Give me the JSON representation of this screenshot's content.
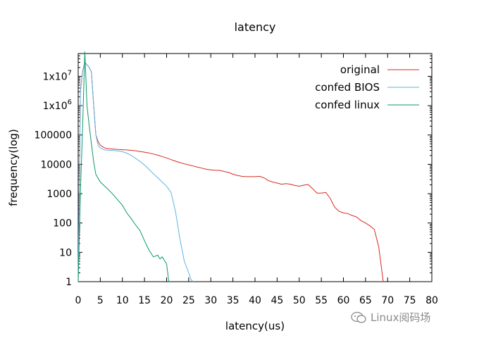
{
  "chart_data": {
    "type": "line",
    "title": "latency",
    "xlabel": "latency(us)",
    "ylabel": "frequency(log)",
    "xlim": [
      0,
      80
    ],
    "ylim": [
      1,
      60000000
    ],
    "y_scale": "log",
    "x_ticks": [
      "0",
      "5",
      "10",
      "15",
      "20",
      "25",
      "30",
      "35",
      "40",
      "45",
      "50",
      "55",
      "60",
      "65",
      "70",
      "75",
      "80"
    ],
    "y_ticks": [
      {
        "value": 1,
        "label": "1"
      },
      {
        "value": 10,
        "label": "10"
      },
      {
        "value": 100,
        "label": "100"
      },
      {
        "value": 1000,
        "label": "1000"
      },
      {
        "value": 10000,
        "label": "10000"
      },
      {
        "value": 100000,
        "label": "100000"
      },
      {
        "value": 1000000,
        "label": "1x10",
        "exp": "6"
      },
      {
        "value": 10000000,
        "label": "1x10",
        "exp": "7"
      }
    ],
    "grid": false,
    "legend_position": "top-right",
    "series": [
      {
        "name": "original",
        "color": "#d62a1e",
        "x": [
          0,
          0.5,
          1,
          1.5,
          2,
          2.5,
          3,
          3.5,
          4,
          4.5,
          5,
          5.5,
          6,
          7,
          8,
          9,
          10,
          11,
          12,
          13,
          14,
          15,
          16,
          17,
          18,
          19,
          20,
          21,
          22,
          23,
          24,
          25,
          26,
          27,
          28,
          29,
          30,
          31,
          32,
          33,
          34,
          35,
          36,
          37,
          38,
          39,
          40,
          41,
          42,
          43,
          44,
          45,
          46,
          47,
          48,
          49,
          50,
          51,
          52,
          53,
          54,
          55,
          56,
          57,
          58,
          59,
          60,
          61,
          62,
          63,
          64,
          65,
          66,
          67,
          68,
          68.5,
          69
        ],
        "y": [
          1,
          3000000,
          15000000,
          30000000,
          25000000,
          20000000,
          14000000,
          1000000,
          100000,
          60000,
          45000,
          40000,
          36000,
          34000,
          33000,
          32000,
          31500,
          31000,
          30000,
          29000,
          27500,
          26000,
          24500,
          22500,
          20500,
          18500,
          16500,
          14500,
          12800,
          11500,
          10400,
          9600,
          8800,
          8000,
          7400,
          6800,
          6500,
          6300,
          6200,
          5700,
          5300,
          4600,
          4200,
          3900,
          3800,
          3800,
          3800,
          3900,
          3500,
          2800,
          2500,
          2300,
          2100,
          2200,
          2100,
          1900,
          1800,
          1950,
          2050,
          1500,
          1050,
          1050,
          1100,
          700,
          350,
          250,
          220,
          210,
          180,
          160,
          120,
          100,
          80,
          60,
          15,
          4,
          1
        ]
      },
      {
        "name": "confed BIOS",
        "color": "#5fb3e2",
        "x": [
          0,
          0.5,
          1,
          1.5,
          2,
          2.5,
          3,
          3.5,
          4,
          4.5,
          5,
          5.5,
          6,
          7,
          8,
          9,
          10,
          11,
          12,
          13,
          14,
          15,
          16,
          17,
          18,
          19,
          20,
          21,
          22,
          23,
          24,
          25,
          25.5,
          26
        ],
        "y": [
          1,
          3000000,
          15000000,
          30000000,
          25000000,
          20000000,
          14000000,
          1000000,
          100000,
          45000,
          36000,
          33000,
          31000,
          30000,
          29500,
          28500,
          27000,
          24000,
          20000,
          16000,
          12500,
          9500,
          6800,
          4800,
          3500,
          2500,
          1800,
          1100,
          250,
          30,
          5,
          2,
          1.2,
          1
        ]
      },
      {
        "name": "confed linux",
        "color": "#0a9a6a",
        "x": [
          0,
          0.5,
          1,
          1.5,
          2,
          2.5,
          3,
          3.5,
          4,
          5,
          6,
          7,
          8,
          9,
          10,
          11,
          12,
          13,
          14,
          15,
          16,
          17,
          18,
          18.5,
          19,
          20,
          20.5
        ],
        "y": [
          1,
          1000,
          200000,
          70000000,
          1000000,
          200000,
          50000,
          12000,
          4500,
          2500,
          1800,
          1300,
          900,
          600,
          400,
          220,
          140,
          85,
          55,
          25,
          12,
          7,
          8,
          6,
          7,
          4,
          1
        ]
      }
    ]
  },
  "watermark": {
    "text": "Linux阅码场"
  }
}
